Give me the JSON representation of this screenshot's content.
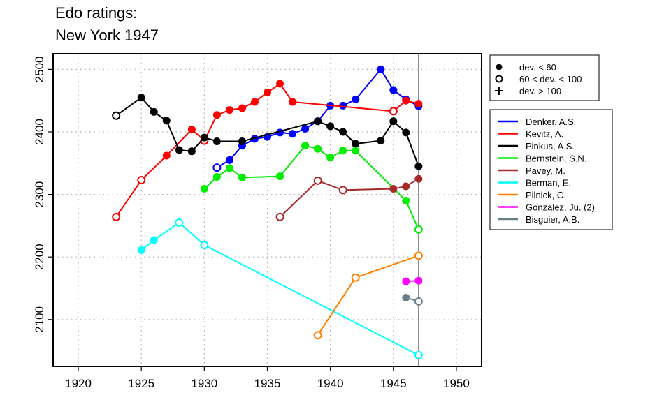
{
  "chart_data": {
    "type": "line",
    "title_line1": "Edo ratings:",
    "title_line2": "New York 1947",
    "xlabel": "",
    "ylabel": "",
    "xlim": [
      1918,
      1952
    ],
    "ylim": [
      2025,
      2525
    ],
    "xticks": [
      1920,
      1925,
      1930,
      1935,
      1940,
      1945,
      1950
    ],
    "yticks": [
      2100,
      2200,
      2300,
      2400,
      2500
    ],
    "grid": "dotted",
    "reference_line_x": 1947,
    "reference_line_color": "#7f7f7f",
    "symbol_legend": [
      {
        "marker": "filled",
        "label": "dev. < 60"
      },
      {
        "marker": "open",
        "label": "60 < dev. < 100"
      },
      {
        "marker": "plus",
        "label": "dev. > 100"
      }
    ],
    "series": [
      {
        "name": "Denker, A.S.",
        "color": "#0000ff",
        "points": [
          [
            1931,
            2343,
            "o"
          ],
          [
            1932,
            2355,
            "f"
          ],
          [
            1933,
            2378,
            "f"
          ],
          [
            1934,
            2389,
            "f"
          ],
          [
            1935,
            2392,
            "f"
          ],
          [
            1936,
            2399,
            "f"
          ],
          [
            1937,
            2397,
            "f"
          ],
          [
            1938,
            2405,
            "f"
          ],
          [
            1939,
            2417,
            "f"
          ],
          [
            1940,
            2442,
            "f"
          ],
          [
            1941,
            2442,
            "f"
          ],
          [
            1942,
            2452,
            "f"
          ],
          [
            1944,
            2500,
            "f"
          ],
          [
            1945,
            2467,
            "f"
          ],
          [
            1946,
            2452,
            "f"
          ],
          [
            1947,
            2441,
            "f"
          ]
        ]
      },
      {
        "name": "Kevitz, A.",
        "color": "#ff0000",
        "points": [
          [
            1923,
            2264,
            "o"
          ],
          [
            1925,
            2323,
            "o"
          ],
          [
            1927,
            2362,
            "f"
          ],
          [
            1929,
            2404,
            "f"
          ],
          [
            1930,
            2386,
            "o"
          ],
          [
            1931,
            2427,
            "f"
          ],
          [
            1932,
            2435,
            "f"
          ],
          [
            1933,
            2438,
            "f"
          ],
          [
            1934,
            2448,
            "f"
          ],
          [
            1935,
            2463,
            "f"
          ],
          [
            1936,
            2477,
            "f"
          ],
          [
            1937,
            2448,
            "f"
          ],
          [
            1945,
            2433,
            "o"
          ],
          [
            1946,
            2450,
            "f"
          ],
          [
            1947,
            2445,
            "f"
          ]
        ]
      },
      {
        "name": "Pinkus, A.S.",
        "color": "#000000",
        "points": [
          [
            1923,
            2426,
            "o"
          ],
          [
            1925,
            2455,
            "f"
          ],
          [
            1926,
            2432,
            "f"
          ],
          [
            1927,
            2418,
            "f"
          ],
          [
            1928,
            2371,
            "f"
          ],
          [
            1929,
            2369,
            "f"
          ],
          [
            1930,
            2391,
            "f"
          ],
          [
            1931,
            2385,
            "f"
          ],
          [
            1933,
            2385,
            "f"
          ],
          [
            1939,
            2417,
            "f"
          ],
          [
            1940,
            2409,
            "f"
          ],
          [
            1941,
            2400,
            "f"
          ],
          [
            1942,
            2381,
            "f"
          ],
          [
            1944,
            2386,
            "f"
          ],
          [
            1945,
            2417,
            "f"
          ],
          [
            1946,
            2399,
            "f"
          ],
          [
            1947,
            2345,
            "f"
          ]
        ]
      },
      {
        "name": "Bernstein, S.N.",
        "color": "#00ee00",
        "points": [
          [
            1930,
            2309,
            "f"
          ],
          [
            1931,
            2328,
            "f"
          ],
          [
            1932,
            2342,
            "f"
          ],
          [
            1933,
            2327,
            "f"
          ],
          [
            1936,
            2329,
            "f"
          ],
          [
            1938,
            2378,
            "f"
          ],
          [
            1939,
            2373,
            "f"
          ],
          [
            1940,
            2359,
            "f"
          ],
          [
            1941,
            2370,
            "f"
          ],
          [
            1942,
            2370,
            "f"
          ],
          [
            1946,
            2290,
            "f"
          ],
          [
            1947,
            2244,
            "o"
          ]
        ]
      },
      {
        "name": "Pavey, M.",
        "color": "#a52a2a",
        "points": [
          [
            1936,
            2264,
            "o"
          ],
          [
            1939,
            2322,
            "o"
          ],
          [
            1941,
            2307,
            "o"
          ],
          [
            1945,
            2309,
            "f"
          ],
          [
            1946,
            2313,
            "f"
          ],
          [
            1947,
            2325,
            "f"
          ]
        ]
      },
      {
        "name": "Berman, E.",
        "color": "#00ffff",
        "points": [
          [
            1925,
            2211,
            "f"
          ],
          [
            1926,
            2227,
            "f"
          ],
          [
            1928,
            2255,
            "o"
          ],
          [
            1930,
            2219,
            "o"
          ],
          [
            1947,
            2043,
            "o"
          ]
        ]
      },
      {
        "name": "Pilnick, C.",
        "color": "#ff7f00",
        "points": [
          [
            1939,
            2075,
            "o"
          ],
          [
            1942,
            2167,
            "o"
          ],
          [
            1947,
            2202,
            "o"
          ]
        ]
      },
      {
        "name": "Gonzalez, Ju. (2)",
        "color": "#ff00ff",
        "points": [
          [
            1946,
            2161,
            "f"
          ],
          [
            1947,
            2162,
            "f"
          ]
        ]
      },
      {
        "name": "Bisguier, A.B.",
        "color": "#6b8089",
        "points": [
          [
            1946,
            2135,
            "f"
          ],
          [
            1947,
            2129,
            "o"
          ]
        ]
      }
    ]
  }
}
